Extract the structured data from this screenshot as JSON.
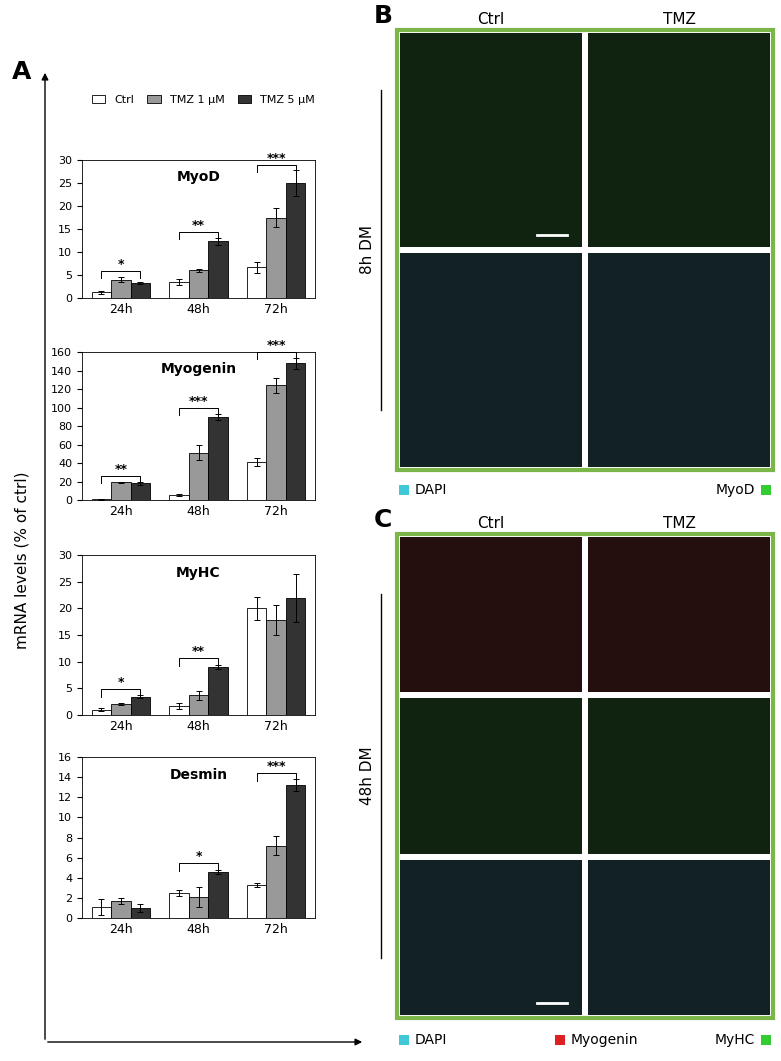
{
  "chart_data": [
    {
      "type": "bar",
      "title": "MyoD",
      "categories": [
        "24h",
        "48h",
        "72h"
      ],
      "series": [
        {
          "name": "Ctrl",
          "color": "#ffffff",
          "values": [
            1.2,
            3.5,
            6.7
          ],
          "errors": [
            0.4,
            0.6,
            1.2
          ]
        },
        {
          "name": "TMZ 1 µM",
          "color": "#999999",
          "values": [
            4.0,
            6.0,
            17.5
          ],
          "errors": [
            0.6,
            0.3,
            2.0
          ]
        },
        {
          "name": "TMZ 5 µM",
          "color": "#333333",
          "values": [
            3.2,
            12.3,
            25.0
          ],
          "errors": [
            0.2,
            0.8,
            2.8
          ]
        }
      ],
      "ylim": [
        0,
        30
      ],
      "yticks": [
        0,
        5,
        10,
        15,
        20,
        25,
        30
      ],
      "significance": [
        {
          "category": "24h",
          "from": "Ctrl",
          "to": "TMZ 5 µM",
          "label": "*"
        },
        {
          "category": "48h",
          "from": "Ctrl",
          "to": "TMZ 5 µM",
          "label": "**"
        },
        {
          "category": "72h",
          "from": "Ctrl",
          "to": "TMZ 5 µM",
          "label": "***"
        }
      ]
    },
    {
      "type": "bar",
      "title": "Myogenin",
      "categories": [
        "24h",
        "48h",
        "72h"
      ],
      "series": [
        {
          "name": "Ctrl",
          "color": "#ffffff",
          "values": [
            1,
            5,
            41
          ],
          "errors": [
            0.5,
            1,
            4
          ]
        },
        {
          "name": "TMZ 1 µM",
          "color": "#999999",
          "values": [
            19,
            51,
            124
          ],
          "errors": [
            1,
            8,
            8
          ]
        },
        {
          "name": "TMZ 5 µM",
          "color": "#333333",
          "values": [
            18,
            90,
            148
          ],
          "errors": [
            2,
            3,
            6
          ]
        }
      ],
      "ylim": [
        0,
        160
      ],
      "yticks": [
        0,
        20,
        40,
        60,
        80,
        100,
        120,
        140,
        160
      ],
      "significance": [
        {
          "category": "24h",
          "from": "Ctrl",
          "to": "TMZ 5 µM",
          "label": "**"
        },
        {
          "category": "48h",
          "from": "Ctrl",
          "to": "TMZ 5 µM",
          "label": "***"
        },
        {
          "category": "72h",
          "from": "Ctrl",
          "to": "TMZ 5 µM",
          "label": "***"
        }
      ]
    },
    {
      "type": "bar",
      "title": "MyHC",
      "categories": [
        "24h",
        "48h",
        "72h"
      ],
      "series": [
        {
          "name": "Ctrl",
          "color": "#ffffff",
          "values": [
            1.0,
            1.7,
            20.0
          ],
          "errors": [
            0.3,
            0.5,
            2.2
          ]
        },
        {
          "name": "TMZ 1 µM",
          "color": "#999999",
          "values": [
            2.0,
            3.7,
            17.8
          ],
          "errors": [
            0.2,
            0.8,
            2.8
          ]
        },
        {
          "name": "TMZ 5 µM",
          "color": "#333333",
          "values": [
            3.4,
            9.0,
            22.0
          ],
          "errors": [
            0.3,
            0.4,
            4.5
          ]
        }
      ],
      "ylim": [
        0,
        30
      ],
      "yticks": [
        0,
        5,
        10,
        15,
        20,
        25,
        30
      ],
      "significance": [
        {
          "category": "24h",
          "from": "Ctrl",
          "to": "TMZ 5 µM",
          "label": "*"
        },
        {
          "category": "48h",
          "from": "Ctrl",
          "to": "TMZ 5 µM",
          "label": "**"
        }
      ]
    },
    {
      "type": "bar",
      "title": "Desmin",
      "categories": [
        "24h",
        "48h",
        "72h"
      ],
      "series": [
        {
          "name": "Ctrl",
          "color": "#ffffff",
          "values": [
            1.1,
            2.5,
            3.3
          ],
          "errors": [
            0.8,
            0.3,
            0.2
          ]
        },
        {
          "name": "TMZ 1 µM",
          "color": "#999999",
          "values": [
            1.7,
            2.1,
            7.2
          ],
          "errors": [
            0.3,
            1.0,
            0.9
          ]
        },
        {
          "name": "TMZ 5 µM",
          "color": "#333333",
          "values": [
            1.0,
            4.6,
            13.2
          ],
          "errors": [
            0.4,
            0.2,
            0.6
          ]
        }
      ],
      "ylim": [
        0,
        16
      ],
      "yticks": [
        0,
        2,
        4,
        6,
        8,
        10,
        12,
        14,
        16
      ],
      "significance": [
        {
          "category": "48h",
          "from": "Ctrl",
          "to": "TMZ 5 µM",
          "label": "*"
        },
        {
          "category": "72h",
          "from": "Ctrl",
          "to": "TMZ 5 µM",
          "label": "***"
        }
      ]
    }
  ],
  "panel_A": {
    "label": "A",
    "y_axis_label": "mRNA levels (% of ctrl)",
    "legend": "upper left"
  },
  "microscopy": [
    {
      "label": "B",
      "row_label": "8h DM",
      "columns": [
        "Ctrl",
        "TMZ"
      ],
      "rows": [
        "MyoD",
        "DAPI"
      ],
      "channels": [
        {
          "name": "DAPI",
          "color": "#40c8d8"
        },
        {
          "name": "MyoD",
          "color": "#33cc33"
        }
      ]
    },
    {
      "label": "C",
      "row_label": "48h DM",
      "columns": [
        "Ctrl",
        "TMZ"
      ],
      "rows": [
        "Myogenin",
        "MyHC",
        "DAPI"
      ],
      "channels": [
        {
          "name": "DAPI",
          "color": "#40c8d8"
        },
        {
          "name": "Myogenin",
          "color": "#e02020"
        },
        {
          "name": "MyHC",
          "color": "#33cc33"
        }
      ]
    }
  ]
}
